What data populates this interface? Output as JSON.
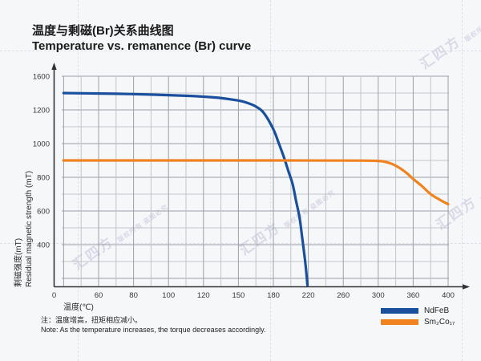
{
  "header": {
    "title_zh": "温度与剩磁(Br)关系曲线图",
    "title_en": "Temperature vs. remanence (Br) curve"
  },
  "watermark": {
    "brand": "汇四方",
    "notice": "版权所有 盗图必究"
  },
  "note": {
    "zh": "注：温度增高，扭矩相应减小。",
    "en": "Note: As the temperature increases, the torque decreases accordingly."
  },
  "chart_data": {
    "type": "line",
    "title_zh": "温度与剩磁(Br)关系曲线图",
    "title_en": "Temperature vs. remanence (Br) curve",
    "xlabel": "温度(℃)",
    "ylabel_zh": "剩磁强度(mT)",
    "ylabel_en": "Residual magnetic strength (mT)",
    "x_ticks": [
      0,
      60,
      80,
      100,
      120,
      150,
      180,
      220,
      260,
      300,
      360,
      400
    ],
    "y_ticks": [
      1600,
      1200,
      1000,
      800,
      600,
      400
    ],
    "scale_note": "tick marks are evenly spaced on both axes (non-linear value scale); grid on, minor line between each pair of ticks",
    "legend_position": "bottom-right",
    "axis_color": "#2f3237",
    "grid_major_color": "#9ba0a8",
    "grid_minor_color": "#c0c4cb",
    "series": [
      {
        "name": "NdFeB",
        "color": "#1a4f9e",
        "points": [
          [
            0,
            1400
          ],
          [
            40,
            1397
          ],
          [
            80,
            1388
          ],
          [
            110,
            1368
          ],
          [
            130,
            1348
          ],
          [
            145,
            1322
          ],
          [
            155,
            1295
          ],
          [
            165,
            1240
          ],
          [
            172,
            1180
          ],
          [
            180,
            1085
          ],
          [
            186,
            1005
          ],
          [
            192,
            920
          ],
          [
            197,
            840
          ],
          [
            202,
            760
          ],
          [
            206,
            660
          ],
          [
            210,
            560
          ],
          [
            213,
            440
          ],
          [
            216,
            320
          ],
          [
            218,
            220
          ],
          [
            219,
            160
          ]
        ]
      },
      {
        "name": "Sm₂Co₁₇",
        "color": "#f0821f",
        "points": [
          [
            0,
            900
          ],
          [
            100,
            900
          ],
          [
            200,
            900
          ],
          [
            280,
            899
          ],
          [
            300,
            897
          ],
          [
            310,
            893
          ],
          [
            320,
            884
          ],
          [
            330,
            869
          ],
          [
            340,
            848
          ],
          [
            350,
            822
          ],
          [
            360,
            790
          ],
          [
            370,
            748
          ],
          [
            380,
            700
          ],
          [
            390,
            668
          ],
          [
            400,
            640
          ]
        ]
      }
    ]
  }
}
